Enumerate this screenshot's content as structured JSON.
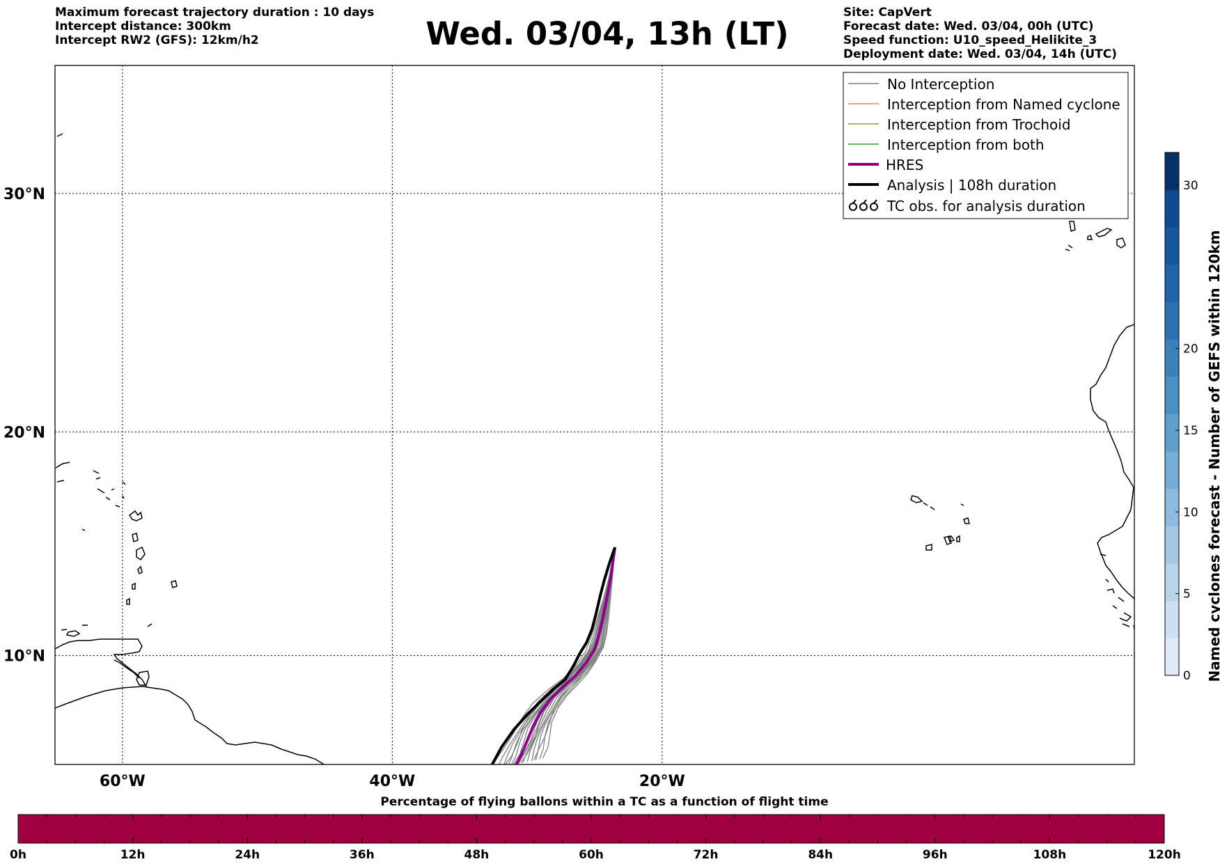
{
  "header": {
    "left": [
      "Maximum forecast trajectory duration : 10 days",
      "Intercept distance: 300km",
      "Intercept RW2 (GFS):  12km/h2"
    ],
    "title": "Wed. 03/04, 13h (LT)",
    "right": [
      "Site: CapVert",
      "Forecast date: Wed. 03/04, 00h (UTC)",
      "Speed function: U10_speed_Helikite_3",
      "Deployment date: Wed. 03/04, 14h (UTC)"
    ]
  },
  "map": {
    "lon_range": [
      -65,
      15
    ],
    "lat_range": [
      5,
      35
    ],
    "lon_ticks": [
      {
        "value": -60,
        "label": "60°W"
      },
      {
        "value": -40,
        "label": "40°W"
      },
      {
        "value": -20,
        "label": "20°W"
      }
    ],
    "lat_ticks": [
      {
        "value": 30,
        "label": "30°N"
      },
      {
        "value": 20,
        "label": "20°N"
      },
      {
        "value": 10,
        "label": "10°N"
      }
    ],
    "grid": true,
    "release_site": {
      "lon": -23.5,
      "lat": 14.9
    }
  },
  "legend": {
    "placement": "top-right",
    "entries": [
      {
        "label": "No Interception",
        "color": "#808080",
        "style": "thin"
      },
      {
        "label": "Interception from Named cyclone",
        "color": "#ff7f50",
        "style": "thin"
      },
      {
        "label": "Interception from Trochoid",
        "color": "#999933",
        "style": "thin"
      },
      {
        "label": "Interception from both",
        "color": "#2ca02c",
        "style": "thin"
      },
      {
        "label": "HRES",
        "color": "#8b008b",
        "style": "thick"
      },
      {
        "label": "Analysis | 108h duration",
        "color": "#000000",
        "style": "thick"
      },
      {
        "label": "TC obs. for analysis duration",
        "color": "#000000",
        "style": "cyclone-symbols"
      }
    ]
  },
  "colorbar_right": {
    "label": "Named cyclones forecast - Number of GEFS within 120km",
    "range": [
      0,
      32
    ],
    "ticks": [
      0,
      5,
      10,
      15,
      20,
      30
    ],
    "colors": [
      "#dfeaf6",
      "#cddff0",
      "#b8d4ea",
      "#a4c8e3",
      "#8dbadd",
      "#76add6",
      "#5f9fce",
      "#4a90c5",
      "#3a81bc",
      "#2c72b2",
      "#2064a8",
      "#16579d",
      "#0e4a8f",
      "#08306b"
    ]
  },
  "colorbar_bottom": {
    "title": "Percentage of flying ballons within a TC as a function of flight time",
    "color": "#a10040",
    "ticks": [
      "0h",
      "12h",
      "24h",
      "36h",
      "48h",
      "60h",
      "72h",
      "84h",
      "96h",
      "108h",
      "120h"
    ],
    "minor_per_major": 3
  },
  "chart_data": {
    "type": "line",
    "title": "Wed. 03/04, 13h (LT)",
    "xlabel": "",
    "ylabel": "",
    "series": [
      {
        "name": "HRES",
        "color": "#8b008b",
        "points": [
          [
            -23.5,
            14.9
          ],
          [
            -23.8,
            13.6
          ],
          [
            -24.1,
            12.6
          ],
          [
            -24.4,
            11.7
          ],
          [
            -24.7,
            10.9
          ],
          [
            -25.0,
            10.3
          ],
          [
            -25.6,
            9.7
          ],
          [
            -26.4,
            9.1
          ],
          [
            -27.3,
            8.6
          ],
          [
            -28.3,
            8.0
          ],
          [
            -29.0,
            7.4
          ],
          [
            -29.6,
            6.7
          ],
          [
            -30.0,
            6.1
          ],
          [
            -30.4,
            5.5
          ],
          [
            -30.8,
            5.0
          ]
        ]
      },
      {
        "name": "Analysis | 108h duration",
        "color": "#000000",
        "points": [
          [
            -23.5,
            14.9
          ],
          [
            -23.9,
            14.2
          ],
          [
            -24.3,
            13.4
          ],
          [
            -24.6,
            12.7
          ],
          [
            -24.9,
            11.9
          ],
          [
            -25.2,
            11.2
          ],
          [
            -25.6,
            10.6
          ],
          [
            -26.1,
            10.1
          ],
          [
            -26.6,
            9.5
          ],
          [
            -27.2,
            8.9
          ],
          [
            -28.0,
            8.5
          ],
          [
            -29.0,
            7.9
          ],
          [
            -30.0,
            7.3
          ],
          [
            -31.0,
            6.6
          ],
          [
            -31.9,
            5.8
          ],
          [
            -32.6,
            5.0
          ]
        ]
      }
    ],
    "ensemble_offsets": [
      -1.2,
      -0.9,
      -0.7,
      -0.5,
      -0.35,
      -0.2,
      -0.05,
      0.1,
      0.2,
      0.35,
      0.5,
      0.65,
      0.8,
      1.0,
      1.2,
      -0.6,
      0.3,
      0.9
    ]
  }
}
